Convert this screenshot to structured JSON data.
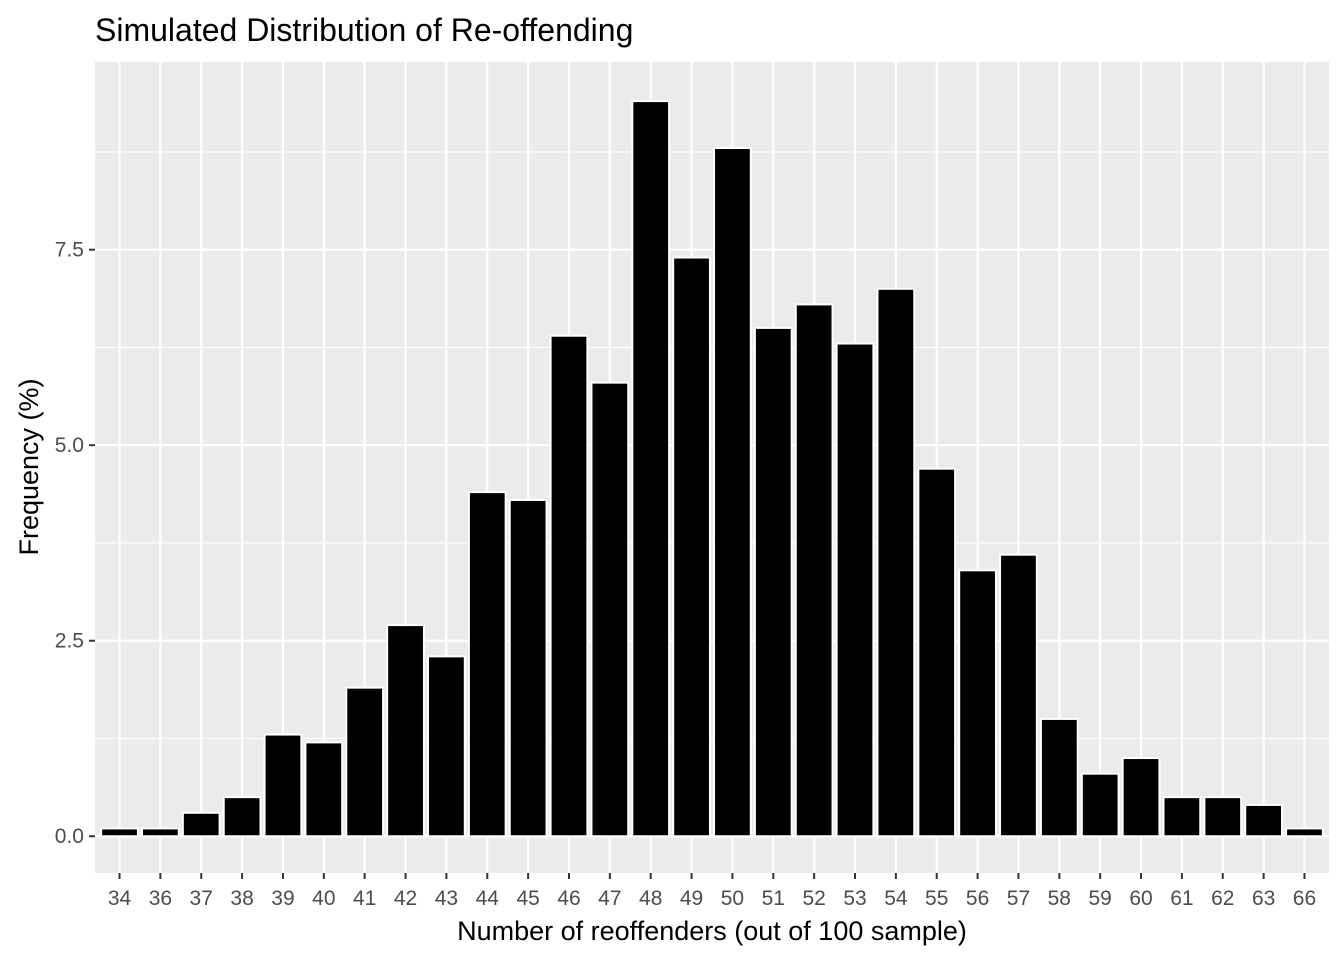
{
  "chart_data": {
    "type": "bar",
    "title": "Simulated Distribution of Re-offending",
    "xlabel": "Number of reoffenders (out of 100 sample)",
    "ylabel": "Frequency (%)",
    "categories": [
      "34",
      "36",
      "37",
      "38",
      "39",
      "40",
      "41",
      "42",
      "43",
      "44",
      "45",
      "46",
      "47",
      "48",
      "49",
      "50",
      "51",
      "52",
      "53",
      "54",
      "55",
      "56",
      "57",
      "58",
      "59",
      "60",
      "61",
      "62",
      "63",
      "66"
    ],
    "values": [
      0.1,
      0.1,
      0.3,
      0.5,
      1.3,
      1.2,
      1.9,
      2.7,
      2.3,
      4.4,
      4.3,
      6.4,
      5.8,
      9.4,
      7.4,
      8.8,
      6.5,
      6.8,
      6.3,
      7.0,
      4.7,
      3.4,
      3.6,
      1.5,
      0.8,
      1.0,
      0.5,
      0.5,
      0.4,
      0.1
    ],
    "yticks": [
      0.0,
      2.5,
      5.0,
      7.5
    ],
    "ytick_labels": [
      "0.0",
      "2.5",
      "5.0",
      "7.5"
    ],
    "ylim": [
      -0.47,
      9.9
    ],
    "grid": true,
    "colors": {
      "panel": "#ebebeb",
      "bar": "#000000",
      "bar_outline": "#ffffff",
      "grid": "#ffffff"
    }
  }
}
